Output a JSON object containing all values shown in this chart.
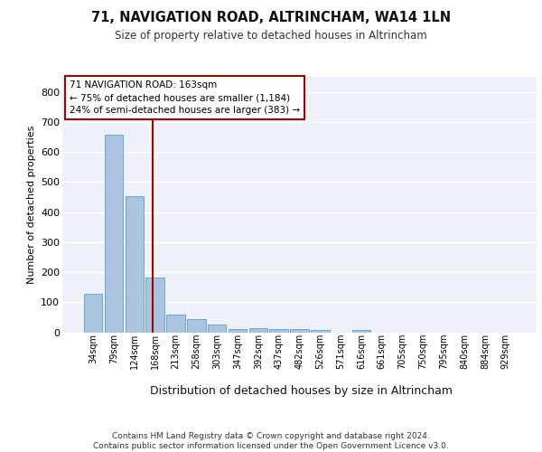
{
  "title": "71, NAVIGATION ROAD, ALTRINCHAM, WA14 1LN",
  "subtitle": "Size of property relative to detached houses in Altrincham",
  "xlabel": "Distribution of detached houses by size in Altrincham",
  "ylabel": "Number of detached properties",
  "bin_labels": [
    "34sqm",
    "79sqm",
    "124sqm",
    "168sqm",
    "213sqm",
    "258sqm",
    "303sqm",
    "347sqm",
    "392sqm",
    "437sqm",
    "482sqm",
    "526sqm",
    "571sqm",
    "616sqm",
    "661sqm",
    "705sqm",
    "750sqm",
    "795sqm",
    "840sqm",
    "884sqm",
    "929sqm"
  ],
  "bar_heights": [
    128,
    657,
    452,
    183,
    58,
    43,
    25,
    12,
    13,
    12,
    10,
    8,
    0,
    8,
    0,
    0,
    0,
    0,
    0,
    0,
    0
  ],
  "bar_color": "#aac4e0",
  "bar_edge_color": "#5a9fd4",
  "bg_color": "#eef2f8",
  "grid_color": "#ffffff",
  "vline_color": "#aa0000",
  "annotation_text": "71 NAVIGATION ROAD: 163sqm\n← 75% of detached houses are smaller (1,184)\n24% of semi-detached houses are larger (383) →",
  "annotation_box_color": "#aa0000",
  "footer": "Contains HM Land Registry data © Crown copyright and database right 2024.\nContains public sector information licensed under the Open Government Licence v3.0.",
  "ylim": [
    0,
    850
  ],
  "yticks": [
    0,
    100,
    200,
    300,
    400,
    500,
    600,
    700,
    800
  ],
  "title_fontsize": 10.5,
  "subtitle_fontsize": 8.5
}
